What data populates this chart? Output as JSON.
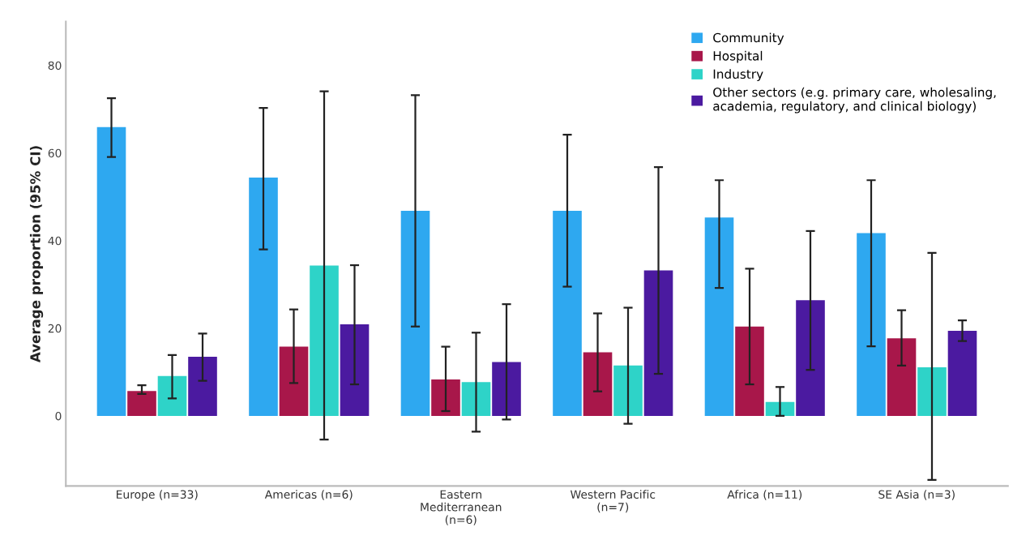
{
  "chart_data": {
    "type": "bar",
    "ylabel": "Average proportion (95% CI)",
    "categories": [
      "Europe (n=33)",
      "Americas (n=6)",
      "Eastern\nMediterranean\n(n=6)",
      "Western Pacific\n(n=7)",
      "Africa (n=11)",
      "SE Asia (n=3)"
    ],
    "series": [
      {
        "name": "Community",
        "color": "#2ea8f0",
        "values": [
          65.9,
          54.4,
          46.8,
          46.8,
          45.3,
          41.7
        ],
        "errors": [
          [
            59.1,
            72.5
          ],
          [
            38.0,
            70.3
          ],
          [
            20.4,
            73.2
          ],
          [
            29.5,
            64.2
          ],
          [
            29.2,
            53.8
          ],
          [
            15.9,
            53.8
          ]
        ]
      },
      {
        "name": "Hospital",
        "color": "#a8174a",
        "values": [
          5.7,
          15.8,
          8.3,
          14.5,
          20.4,
          17.7
        ],
        "errors": [
          [
            5.0,
            7.0
          ],
          [
            7.5,
            24.3
          ],
          [
            1.1,
            15.8
          ],
          [
            5.6,
            23.4
          ],
          [
            7.2,
            33.6
          ],
          [
            11.5,
            24.1
          ]
        ]
      },
      {
        "name": "Industry",
        "color": "#2ed3c8",
        "values": [
          9.1,
          34.3,
          7.7,
          11.5,
          3.2,
          11.1
        ],
        "errors": [
          [
            4.0,
            13.9
          ],
          [
            -5.4,
            74.1
          ],
          [
            -3.6,
            19.0
          ],
          [
            -1.8,
            24.7
          ],
          [
            0.0,
            6.6
          ],
          [
            -14.6,
            37.2
          ]
        ]
      },
      {
        "name": "Other sectors (e.g. primary care, wholesaling,\nacademia, regulatory, and clinical biology)",
        "color": "#4b1aa0",
        "values": [
          13.5,
          20.9,
          12.3,
          33.2,
          26.4,
          19.4
        ],
        "errors": [
          [
            8.0,
            18.8
          ],
          [
            7.2,
            34.4
          ],
          [
            -0.8,
            25.5
          ],
          [
            9.6,
            56.8
          ],
          [
            10.5,
            42.2
          ],
          [
            17.1,
            21.8
          ]
        ]
      }
    ],
    "ylim": [
      -16,
      90
    ],
    "yticks": [
      0,
      20,
      40,
      60,
      80
    ],
    "grid": false,
    "legend": "top right"
  }
}
